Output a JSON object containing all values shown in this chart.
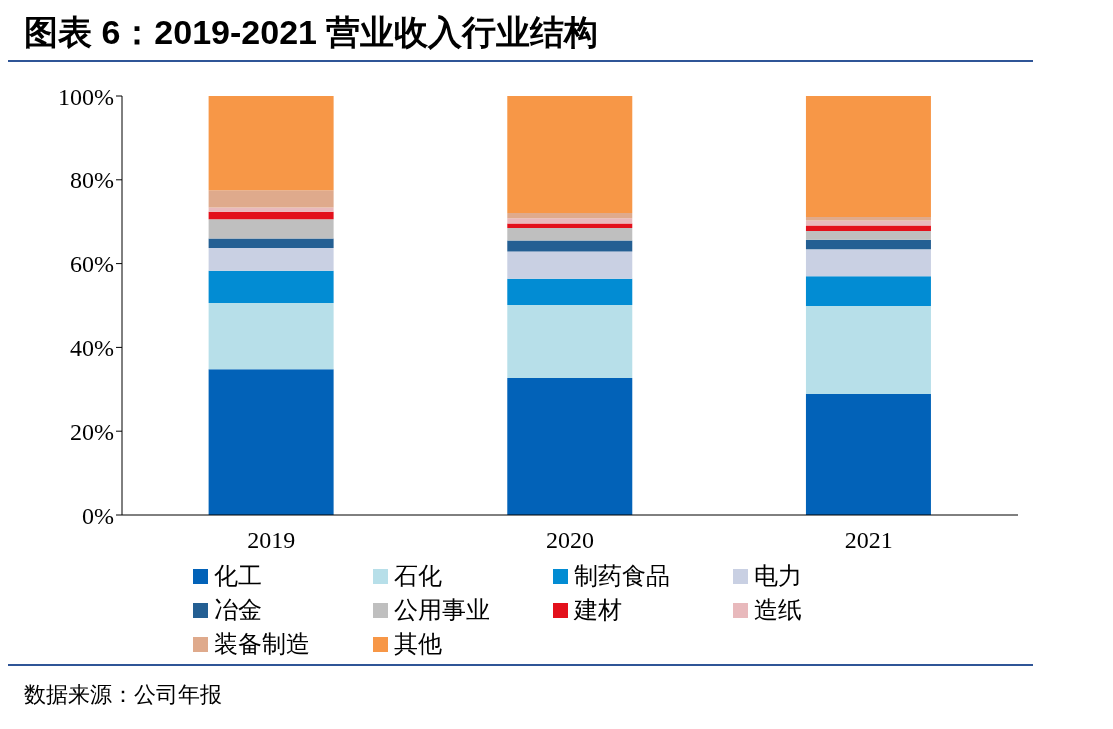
{
  "chart_data": {
    "type": "bar",
    "title": "图表 6：2019-2021 营业收入行业结构",
    "stacked": true,
    "categories": [
      "2019",
      "2020",
      "2021"
    ],
    "series": [
      {
        "name": "化工",
        "color": "#0262b8",
        "values": [
          34.8,
          32.7,
          28.9
        ]
      },
      {
        "name": "石化",
        "color": "#b7dfe9",
        "values": [
          15.8,
          17.4,
          21.0
        ]
      },
      {
        "name": "制药食品",
        "color": "#028cd3",
        "values": [
          7.7,
          6.3,
          7.1
        ]
      },
      {
        "name": "电力",
        "color": "#c9d0e3",
        "values": [
          5.4,
          6.5,
          6.4
        ]
      },
      {
        "name": "冶金",
        "color": "#245f93",
        "values": [
          2.3,
          2.6,
          2.3
        ]
      },
      {
        "name": "公用事业",
        "color": "#bfbfbf",
        "values": [
          4.6,
          3.0,
          2.1
        ]
      },
      {
        "name": "建材",
        "color": "#e3101b",
        "values": [
          1.8,
          1.1,
          1.3
        ]
      },
      {
        "name": "造纸",
        "color": "#e8b9bc",
        "values": [
          1.0,
          1.2,
          1.2
        ]
      },
      {
        "name": "装备制造",
        "color": "#dfaa8c",
        "values": [
          4.1,
          1.3,
          0.8
        ]
      },
      {
        "name": "其他",
        "color": "#f79747",
        "values": [
          22.5,
          27.9,
          28.9
        ]
      }
    ],
    "ylim": [
      0,
      100
    ],
    "yticks": [
      {
        "value": 0,
        "label": "0%"
      },
      {
        "value": 20,
        "label": "20%"
      },
      {
        "value": 40,
        "label": "40%"
      },
      {
        "value": 60,
        "label": "60%"
      },
      {
        "value": 80,
        "label": "80%"
      },
      {
        "value": 100,
        "label": "100%"
      }
    ],
    "grid": false,
    "legend": "bottom",
    "annotations": [
      "数据来源：公司年报"
    ]
  }
}
